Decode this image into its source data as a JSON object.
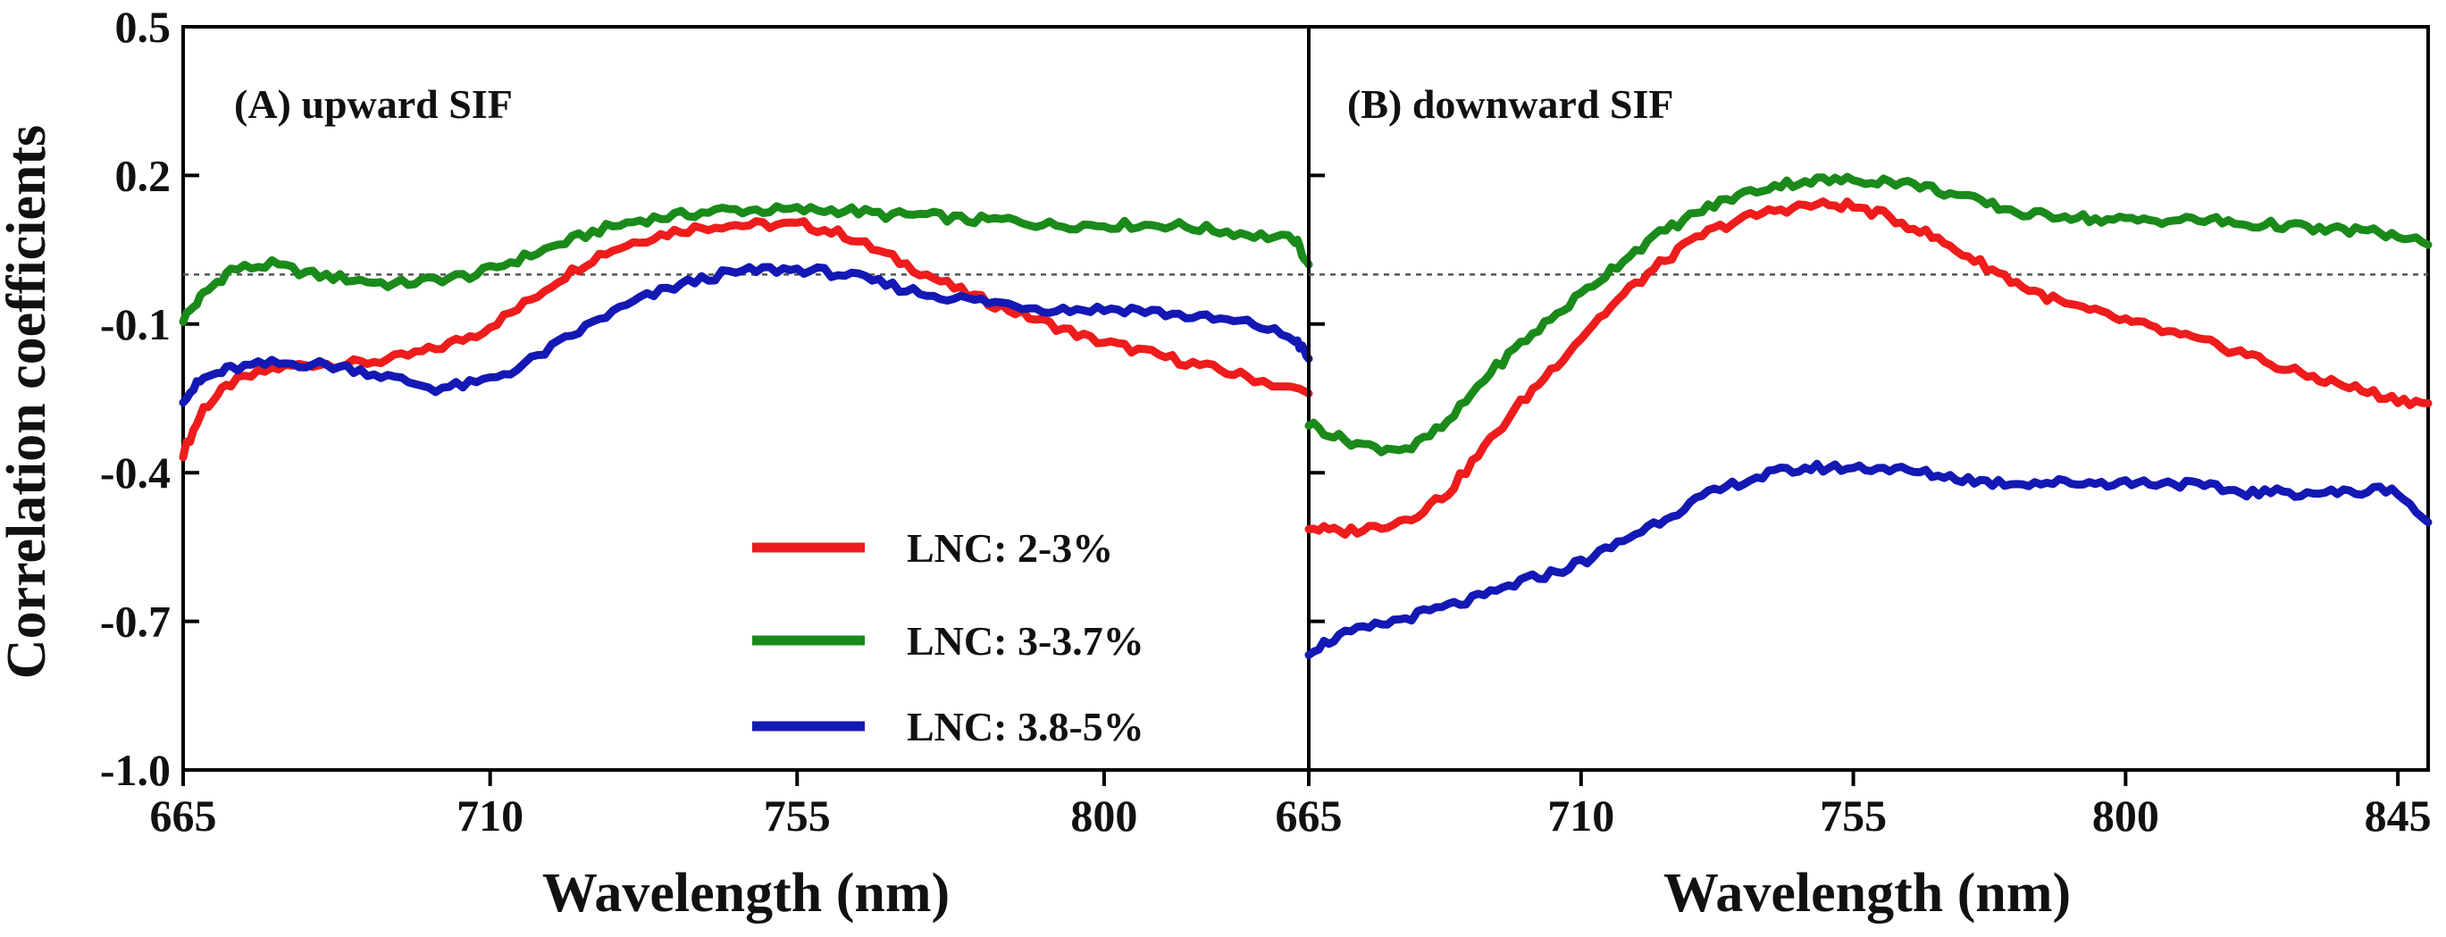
{
  "chart_data": [
    {
      "type": "line",
      "panel": "A",
      "title": "(A) upward SIF",
      "xlabel": "Wavelength (nm)",
      "ylabel": "Correlation coefficients",
      "xlim": [
        665,
        830
      ],
      "ylim": [
        -1.0,
        0.5
      ],
      "xticks": [
        665,
        710,
        755,
        800
      ],
      "xtick_labels": [
        "665",
        "710",
        "755",
        "800"
      ],
      "yticks": [
        0.5,
        0.2,
        -0.1,
        -0.4,
        -0.7,
        -1.0
      ],
      "ytick_labels": [
        "0.5",
        "0.2",
        "-0.1",
        "-0.4",
        "-0.7",
        "-1.0"
      ],
      "reference_line": 0.0,
      "series": [
        {
          "name": "LNC: 2-3%",
          "x": [
            665,
            668,
            672,
            678,
            684,
            690,
            696,
            702,
            708,
            714,
            720,
            726,
            732,
            738,
            744,
            750,
            756,
            762,
            768,
            774,
            780,
            786,
            792,
            798,
            804,
            810,
            816,
            822,
            830
          ],
          "values": [
            -0.36,
            -0.27,
            -0.22,
            -0.19,
            -0.18,
            -0.18,
            -0.17,
            -0.15,
            -0.12,
            -0.07,
            -0.01,
            0.04,
            0.07,
            0.09,
            0.1,
            0.1,
            0.1,
            0.08,
            0.04,
            0.0,
            -0.04,
            -0.07,
            -0.1,
            -0.13,
            -0.15,
            -0.17,
            -0.19,
            -0.21,
            -0.24
          ]
        },
        {
          "name": "LNC: 3-3.7%",
          "x": [
            665,
            668,
            672,
            678,
            684,
            690,
            696,
            702,
            708,
            714,
            720,
            726,
            732,
            738,
            744,
            750,
            756,
            762,
            768,
            774,
            780,
            786,
            792,
            798,
            804,
            810,
            816,
            822,
            828,
            830
          ],
          "values": [
            -0.09,
            -0.04,
            0.01,
            0.02,
            0.0,
            -0.01,
            -0.02,
            -0.01,
            0.0,
            0.03,
            0.06,
            0.09,
            0.11,
            0.12,
            0.13,
            0.13,
            0.13,
            0.13,
            0.12,
            0.12,
            0.11,
            0.11,
            0.1,
            0.1,
            0.1,
            0.1,
            0.09,
            0.08,
            0.07,
            0.02
          ]
        },
        {
          "name": "LNC: 3.8-5%",
          "x": [
            665,
            668,
            672,
            678,
            684,
            690,
            696,
            702,
            708,
            714,
            720,
            726,
            732,
            738,
            744,
            750,
            756,
            762,
            768,
            774,
            780,
            786,
            792,
            798,
            804,
            810,
            816,
            822,
            828,
            830
          ],
          "values": [
            -0.25,
            -0.21,
            -0.19,
            -0.18,
            -0.18,
            -0.19,
            -0.21,
            -0.23,
            -0.22,
            -0.19,
            -0.14,
            -0.09,
            -0.05,
            -0.02,
            0.0,
            0.01,
            0.01,
            0.0,
            -0.02,
            -0.04,
            -0.05,
            -0.06,
            -0.07,
            -0.07,
            -0.07,
            -0.08,
            -0.09,
            -0.1,
            -0.13,
            -0.17
          ]
        }
      ]
    },
    {
      "type": "line",
      "panel": "B",
      "title": "(B) downward SIF",
      "xlabel": "Wavelength (nm)",
      "xlim": [
        665,
        850
      ],
      "ylim": [
        -1.0,
        0.5
      ],
      "xticks": [
        665,
        710,
        755,
        800,
        845
      ],
      "xtick_labels": [
        "665",
        "710",
        "755",
        "800",
        "845"
      ],
      "reference_line": 0.0,
      "series": [
        {
          "name": "LNC: 2-3%",
          "x": [
            665,
            670,
            676,
            682,
            688,
            694,
            700,
            706,
            712,
            718,
            724,
            730,
            736,
            742,
            748,
            754,
            760,
            766,
            772,
            778,
            784,
            790,
            796,
            802,
            808,
            814,
            820,
            826,
            832,
            838,
            844,
            850
          ],
          "values": [
            -0.51,
            -0.52,
            -0.51,
            -0.49,
            -0.44,
            -0.35,
            -0.26,
            -0.18,
            -0.1,
            -0.03,
            0.03,
            0.08,
            0.11,
            0.13,
            0.14,
            0.14,
            0.12,
            0.09,
            0.05,
            0.01,
            -0.03,
            -0.06,
            -0.08,
            -0.1,
            -0.12,
            -0.14,
            -0.16,
            -0.19,
            -0.21,
            -0.23,
            -0.25,
            -0.26
          ]
        },
        {
          "name": "LNC: 3-3.7%",
          "x": [
            665,
            670,
            676,
            682,
            688,
            694,
            700,
            706,
            712,
            718,
            724,
            730,
            736,
            742,
            748,
            754,
            760,
            766,
            772,
            778,
            784,
            790,
            796,
            802,
            808,
            814,
            820,
            826,
            832,
            838,
            844,
            850
          ],
          "values": [
            -0.3,
            -0.33,
            -0.35,
            -0.35,
            -0.3,
            -0.21,
            -0.14,
            -0.08,
            -0.02,
            0.04,
            0.09,
            0.13,
            0.16,
            0.18,
            0.19,
            0.19,
            0.19,
            0.18,
            0.16,
            0.14,
            0.12,
            0.12,
            0.11,
            0.11,
            0.11,
            0.11,
            0.1,
            0.1,
            0.09,
            0.09,
            0.08,
            0.06
          ]
        },
        {
          "name": "LNC: 3.8-5%",
          "x": [
            665,
            670,
            676,
            682,
            688,
            694,
            700,
            706,
            712,
            718,
            724,
            730,
            736,
            742,
            748,
            754,
            760,
            766,
            772,
            778,
            784,
            790,
            796,
            802,
            808,
            814,
            820,
            826,
            832,
            838,
            844,
            850
          ],
          "values": [
            -0.76,
            -0.73,
            -0.71,
            -0.69,
            -0.67,
            -0.65,
            -0.62,
            -0.6,
            -0.57,
            -0.53,
            -0.49,
            -0.45,
            -0.42,
            -0.4,
            -0.39,
            -0.39,
            -0.39,
            -0.4,
            -0.41,
            -0.42,
            -0.42,
            -0.42,
            -0.42,
            -0.42,
            -0.42,
            -0.43,
            -0.44,
            -0.44,
            -0.44,
            -0.44,
            -0.43,
            -0.5
          ]
        }
      ]
    }
  ],
  "legend": {
    "position": "panel-A-bottom-right",
    "entries": [
      {
        "label": "LNC: 2-3%",
        "color": "#ee1c1c"
      },
      {
        "label": "LNC: 3-3.7%",
        "color": "#1a8a1a"
      },
      {
        "label": "LNC: 3.8-5%",
        "color": "#1418b4"
      }
    ]
  },
  "colors": {
    "series": [
      "#ee1c1c",
      "#1a8a1a",
      "#1418b4"
    ],
    "reference_line": "#555555",
    "axes": "#000000"
  }
}
